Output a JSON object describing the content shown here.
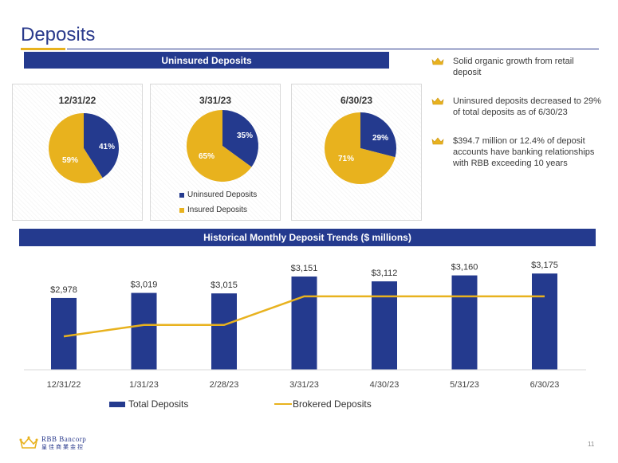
{
  "title": "Deposits",
  "banners": {
    "uninsured": "Uninsured Deposits",
    "trends": "Historical Monthly Deposit Trends ($ millions)"
  },
  "colors": {
    "navy": "#243a8e",
    "gold": "#e8b21e"
  },
  "pies": [
    {
      "date": "12/31/22",
      "uninsured_label": "41%",
      "insured_label": "59%"
    },
    {
      "date": "3/31/23",
      "uninsured_label": "35%",
      "insured_label": "65%"
    },
    {
      "date": "6/30/23",
      "uninsured_label": "29%",
      "insured_label": "71%"
    }
  ],
  "pie_legend": {
    "uninsured": "Uninsured Deposits",
    "insured": "Insured Deposits"
  },
  "bullets": [
    {
      "icon": "crown-icon",
      "text": "Solid organic growth from retail deposit"
    },
    {
      "icon": "crown-icon",
      "text": "Uninsured deposits decreased to 29% of total deposits as of 6/30/23"
    },
    {
      "icon": "crown-icon",
      "text": "$394.7 million or 12.4% of deposit accounts have banking relationships with RBB exceeding 10 years"
    }
  ],
  "trend_legend": {
    "total": "Total Deposits",
    "brokered": "Brokered Deposits"
  },
  "logo": {
    "name": "RBB Bancorp",
    "chinese": "皇佳商業金控"
  },
  "page_number": "11",
  "chart_data": [
    {
      "type": "pie",
      "title": "12/31/22",
      "labels": [
        "Uninsured Deposits",
        "Insured Deposits"
      ],
      "values": [
        41,
        59
      ],
      "colors": [
        "#243a8e",
        "#e8b21e"
      ]
    },
    {
      "type": "pie",
      "title": "3/31/23",
      "labels": [
        "Uninsured Deposits",
        "Insured Deposits"
      ],
      "values": [
        35,
        65
      ],
      "colors": [
        "#243a8e",
        "#e8b21e"
      ]
    },
    {
      "type": "pie",
      "title": "6/30/23",
      "labels": [
        "Uninsured Deposits",
        "Insured Deposits"
      ],
      "values": [
        29,
        71
      ],
      "colors": [
        "#243a8e",
        "#e8b21e"
      ]
    },
    {
      "type": "bar",
      "title": "Historical Monthly Deposit Trends ($ millions)",
      "categories": [
        "12/31/22",
        "1/31/23",
        "2/28/23",
        "3/31/23",
        "4/30/23",
        "5/31/23",
        "6/30/23"
      ],
      "series": [
        {
          "name": "Total Deposits",
          "type": "bar",
          "color": "#243a8e",
          "values": [
            2978,
            3019,
            3015,
            3151,
            3112,
            3160,
            3175
          ],
          "labels": [
            "$2,978",
            "$3,019",
            "$3,015",
            "$3,151",
            "$3,112",
            "$3,160",
            "$3,175"
          ]
        },
        {
          "name": "Brokered Deposits",
          "type": "line",
          "color": "#e8b21e",
          "values": [
            175,
            235,
            235,
            385,
            385,
            385,
            385
          ]
        }
      ],
      "bar_axis_min": 2400,
      "bar_axis_max": 3260,
      "line_axis_min": 0,
      "line_axis_max": 560,
      "grid": false,
      "legend": "bottom"
    }
  ]
}
